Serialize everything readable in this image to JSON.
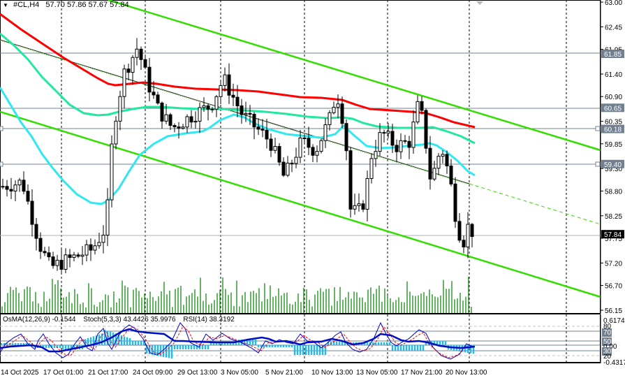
{
  "header": {
    "menu_glyph": "▼",
    "symbol": "#CL,H4",
    "open": "57.70",
    "high": "57.86",
    "low": "57.67",
    "close": "57.84"
  },
  "subwindow": {
    "osma": "OsMA(12,26,9) -0.1544",
    "stoch": "Stoch(5,3,3) 43.4426 35.9976",
    "rsi": "RSI(14) 38.3192"
  },
  "price_axis": {
    "ticks": [
      "63.00",
      "62.45",
      "61.95",
      "61.40",
      "60.90",
      "60.35",
      "59.85",
      "59.30",
      "58.80",
      "58.25",
      "57.75",
      "57.20",
      "56.70",
      "56.15"
    ],
    "tagged_levels": [
      {
        "value": "61.85",
        "style": "gray"
      },
      {
        "value": "60.65",
        "style": "gray"
      },
      {
        "value": "60.18",
        "style": "gray"
      },
      {
        "value": "59.40",
        "style": "gray"
      },
      {
        "value": "57.84",
        "style": "black"
      }
    ]
  },
  "sub_axis": {
    "max": "0.6174",
    "min": "-0.4317",
    "levels": [
      "80",
      "70",
      "50",
      "0.00",
      "30",
      "20"
    ]
  },
  "time_axis": [
    "14 Oct 2025",
    "17 Oct 01:00",
    "21 Oct 17:00",
    "24 Oct 09:00",
    "29 Oct 13:00",
    "3 Nov 05:00",
    "5 Nov 21:00",
    "10 Nov 13:00",
    "13 Nov 05:00",
    "17 Nov 21:00",
    "20 Nov 13:00"
  ],
  "colors": {
    "ma_slow": "#ff0000",
    "ma_mid": "#20e8a0",
    "ma_fast": "#30e8f0",
    "channel": "#33dd00",
    "volume": "#138a13",
    "osma_hist": "#22b8f0",
    "stoch_main": "#0000d0",
    "stoch_signal": "#ff0000",
    "rsi": "#0010c0",
    "level_line": "#708090"
  },
  "chart_data": {
    "type": "candlestick",
    "title": "#CL,H4",
    "ohlc_last": {
      "open": 57.7,
      "high": 57.86,
      "low": 57.67,
      "close": 57.84
    },
    "ylim": [
      56.15,
      63.0
    ],
    "x_ticks": [
      "14 Oct 2025",
      "17 Oct 01:00",
      "21 Oct 17:00",
      "24 Oct 09:00",
      "29 Oct 13:00",
      "3 Nov 05:00",
      "5 Nov 21:00",
      "10 Nov 13:00",
      "13 Nov 05:00",
      "17 Nov 21:00",
      "20 Nov 13:00"
    ],
    "horizontal_levels": [
      61.85,
      60.65,
      60.18,
      59.4,
      57.84
    ],
    "approx_close_path": [
      {
        "x": "14 Oct 2025",
        "close": 58.9
      },
      {
        "x": "17 Oct 01:00",
        "close": 57.2
      },
      {
        "x": "21 Oct 17:00",
        "close": 60.6
      },
      {
        "x": "24 Oct 09:00",
        "close": 61.3
      },
      {
        "x": "29 Oct 13:00",
        "close": 60.3
      },
      {
        "x": "3 Nov 05:00",
        "close": 60.6
      },
      {
        "x": "5 Nov 21:00",
        "close": 59.4
      },
      {
        "x": "10 Nov 13:00",
        "close": 60.2
      },
      {
        "x": "13 Nov 05:00",
        "close": 58.3
      },
      {
        "x": "17 Nov 21:00",
        "close": 60.4
      },
      {
        "x": "20 Nov 13:00",
        "close": 57.84
      }
    ],
    "series": [
      {
        "name": "MA slow (red)",
        "values_approx": [
          62.2,
          61.1,
          61.05,
          60.95,
          60.85,
          60.75,
          60.55,
          60.45,
          60.4,
          60.3,
          60.18
        ]
      },
      {
        "name": "MA mid (green-cyan)",
        "values_approx": [
          61.6,
          59.6,
          60.25,
          60.5,
          60.5,
          60.45,
          60.3,
          60.25,
          60.15,
          60.15,
          59.85
        ]
      },
      {
        "name": "MA fast (cyan)",
        "values_approx": [
          61.2,
          58.3,
          59.9,
          60.2,
          60.0,
          60.2,
          59.65,
          59.7,
          59.5,
          59.7,
          59.3
        ]
      }
    ],
    "subpanel": {
      "osma": -0.1544,
      "stoch_main": 43.4426,
      "stoch_signal": 35.9976,
      "rsi": 38.3192,
      "range": [
        -0.4317,
        0.6174
      ],
      "levels": [
        80,
        70,
        50,
        30,
        20
      ]
    },
    "legend_position": "top-left",
    "grid": false
  }
}
